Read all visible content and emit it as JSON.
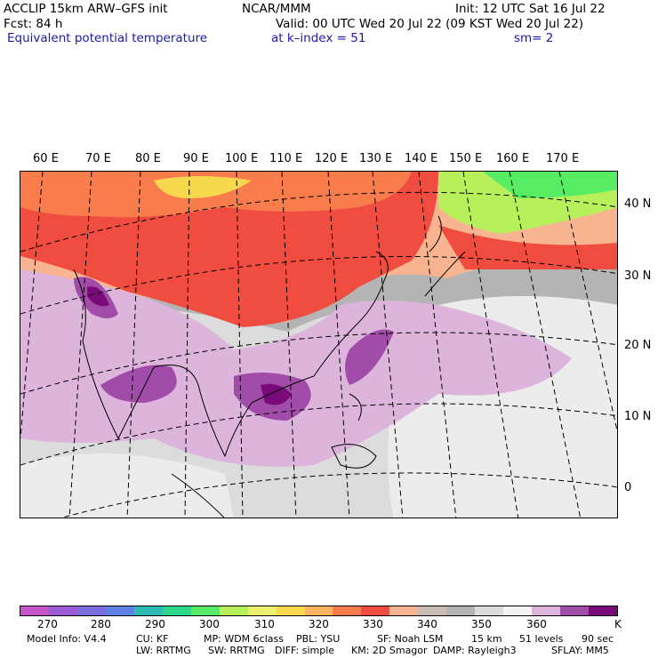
{
  "header": {
    "model_line": "ACCLIP 15km ARW–GFS init",
    "forecast": "Fcst:   84 h",
    "field": "Equivalent potential temperature",
    "org": "NCAR/MMM",
    "valid": "Valid: 00 UTC Wed 20 Jul 22 (09 KST Wed 20 Jul 22)",
    "level": "at k–index =  51",
    "init": "Init: 12 UTC Sat 16 Jul 22",
    "smooth": "sm= 2"
  },
  "axes": {
    "lon_labels": [
      "60 E",
      "70 E",
      "80 E",
      "90 E",
      "100 E",
      "110 E",
      "120 E",
      "130 E",
      "140 E",
      "150 E",
      "160 E",
      "170 E"
    ],
    "lat_labels": [
      "40 N",
      "30 N",
      "20 N",
      "10 N",
      "0"
    ]
  },
  "colorbar": {
    "unit": "K",
    "ticks": [
      "270",
      "280",
      "290",
      "300",
      "310",
      "320",
      "330",
      "340",
      "350",
      "360"
    ],
    "colors": [
      "#c555c8",
      "#9b5ad6",
      "#7a6ee0",
      "#5f82e6",
      "#2cbcb4",
      "#2ed88a",
      "#58ec64",
      "#b8f05c",
      "#eef070",
      "#f8d84c",
      "#f8b460",
      "#f87c4c",
      "#f04c40",
      "#f8b490",
      "#c8bcb4",
      "#b4b4b4",
      "#dcdcdc",
      "#f4f4f4",
      "#dcb4dc",
      "#a04ca8",
      "#7a0a7a"
    ]
  },
  "model_info": {
    "line1": [
      "Model Info: V4.4",
      "CU: KF",
      "MP: WDM 6class",
      "PBL: YSU",
      "SF: Noah LSM",
      "15 km",
      "51 levels",
      "90 sec"
    ],
    "line2": [
      "LW: RRTMG",
      "SW: RRTMG",
      "DIFF: simple",
      "KM: 2D Smagor",
      "DAMP: Rayleigh3",
      "SFLAY: MM5"
    ]
  }
}
